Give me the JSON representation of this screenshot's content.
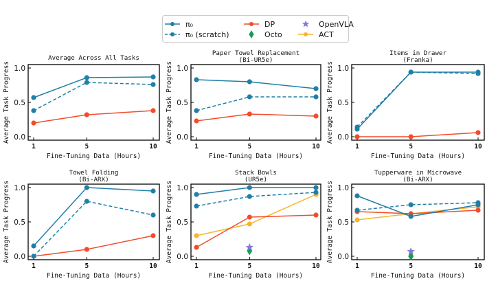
{
  "legend": {
    "entries": [
      {
        "key": "pi0",
        "label": "π₀",
        "color": "#1f7fa8",
        "style": "solid",
        "marker": "circle"
      },
      {
        "key": "pi0_scratch",
        "label": "π₀ (scratch)",
        "color": "#1f7fa8",
        "style": "dashed",
        "marker": "circle"
      },
      {
        "key": "dp",
        "label": "DP",
        "color": "#f24c2b",
        "style": "solid",
        "marker": "circle"
      },
      {
        "key": "octo",
        "label": "Octo",
        "color": "#1a9a55",
        "style": "none",
        "marker": "diamond"
      },
      {
        "key": "openvla",
        "label": "OpenVLA",
        "color": "#8479d6",
        "style": "none",
        "marker": "star"
      },
      {
        "key": "act",
        "label": "ACT",
        "color": "#f7b52b",
        "style": "solid",
        "marker": "circle"
      }
    ]
  },
  "chart_data": [
    {
      "type": "line",
      "title": "Average Across All Tasks",
      "subtitle": "",
      "xlabel": "Fine-Tuning Data (Hours)",
      "ylabel": "Average Task Progress",
      "x": [
        1,
        5,
        10
      ],
      "xticks": [
        "1",
        "5",
        "10"
      ],
      "yticks": [
        "0.0",
        "0.5",
        "1.0"
      ],
      "ylim": [
        0,
        1
      ],
      "series": [
        {
          "key": "pi0",
          "values": [
            0.57,
            0.86,
            0.87
          ]
        },
        {
          "key": "pi0_scratch",
          "values": [
            0.38,
            0.79,
            0.76
          ]
        },
        {
          "key": "dp",
          "values": [
            0.2,
            0.32,
            0.38
          ]
        }
      ]
    },
    {
      "type": "line",
      "title": "Paper Towel Replacement",
      "subtitle": "(Bi-UR5e)",
      "xlabel": "Fine-Tuning Data (Hours)",
      "ylabel": "Average Task Progress",
      "x": [
        1,
        5,
        10
      ],
      "xticks": [
        "1",
        "5",
        "10"
      ],
      "yticks": [
        "0.0",
        "0.5",
        "1.0"
      ],
      "ylim": [
        0,
        1
      ],
      "series": [
        {
          "key": "pi0",
          "values": [
            0.83,
            0.8,
            0.7
          ]
        },
        {
          "key": "pi0_scratch",
          "values": [
            0.38,
            0.58,
            0.58
          ]
        },
        {
          "key": "dp",
          "values": [
            0.23,
            0.33,
            0.3
          ]
        }
      ]
    },
    {
      "type": "line",
      "title": "Items in Drawer",
      "subtitle": "(Franka)",
      "xlabel": "Fine-Tuning Data (Hours)",
      "ylabel": "Average Task Progress",
      "x": [
        1,
        5,
        10
      ],
      "xticks": [
        "1",
        "5",
        "10"
      ],
      "yticks": [
        "0.0",
        "0.5",
        "1.0"
      ],
      "ylim": [
        0,
        1
      ],
      "series": [
        {
          "key": "pi0",
          "values": [
            0.11,
            0.94,
            0.94
          ]
        },
        {
          "key": "pi0_scratch",
          "values": [
            0.14,
            0.94,
            0.92
          ]
        },
        {
          "key": "dp",
          "values": [
            0.0,
            0.0,
            0.06
          ]
        }
      ]
    },
    {
      "type": "line",
      "title": "Towel Folding",
      "subtitle": "(Bi-ARX)",
      "xlabel": "Fine-Tuning Data (Hours)",
      "ylabel": "Average Task Progress",
      "x": [
        1,
        5,
        10
      ],
      "xticks": [
        "1",
        "5",
        "10"
      ],
      "yticks": [
        "0.0",
        "0.5",
        "1.0"
      ],
      "ylim": [
        0,
        1
      ],
      "series": [
        {
          "key": "pi0",
          "values": [
            0.15,
            1.0,
            0.95
          ]
        },
        {
          "key": "pi0_scratch",
          "values": [
            0.0,
            0.8,
            0.6
          ]
        },
        {
          "key": "dp",
          "values": [
            0.0,
            0.1,
            0.3
          ]
        }
      ]
    },
    {
      "type": "line",
      "title": "Stack Bowls",
      "subtitle": "(UR5e)",
      "xlabel": "Fine-Tuning Data (Hours)",
      "ylabel": "Average Task Progress",
      "x": [
        1,
        5,
        10
      ],
      "xticks": [
        "1",
        "5",
        "10"
      ],
      "yticks": [
        "0.0",
        "0.5",
        "1.0"
      ],
      "ylim": [
        0,
        1
      ],
      "series": [
        {
          "key": "pi0",
          "values": [
            0.9,
            1.0,
            1.0
          ]
        },
        {
          "key": "pi0_scratch",
          "values": [
            0.73,
            0.87,
            0.93
          ]
        },
        {
          "key": "dp",
          "values": [
            0.13,
            0.57,
            0.6
          ]
        },
        {
          "key": "act",
          "values": [
            0.3,
            0.47,
            0.9
          ]
        }
      ],
      "points": [
        {
          "key": "openvla",
          "x": 5,
          "y": 0.13
        },
        {
          "key": "octo",
          "x": 5,
          "y": 0.08
        }
      ]
    },
    {
      "type": "line",
      "title": "Tupperware in Microwave",
      "subtitle": "(Bi-ARX)",
      "xlabel": "Fine-Tuning Data (Hours)",
      "ylabel": "Average Task Progress",
      "x": [
        1,
        5,
        10
      ],
      "xticks": [
        "1",
        "5",
        "10"
      ],
      "yticks": [
        "0.0",
        "0.5",
        "1.0"
      ],
      "ylim": [
        0,
        1
      ],
      "series": [
        {
          "key": "pi0",
          "values": [
            0.88,
            0.58,
            0.75
          ]
        },
        {
          "key": "pi0_scratch",
          "values": [
            0.67,
            0.75,
            0.78
          ]
        },
        {
          "key": "dp",
          "values": [
            0.65,
            0.62,
            0.67
          ]
        },
        {
          "key": "act",
          "values": [
            0.53,
            0.62,
            0.72
          ]
        }
      ],
      "points": [
        {
          "key": "openvla",
          "x": 5,
          "y": 0.07
        },
        {
          "key": "octo",
          "x": 5,
          "y": 0.0
        }
      ]
    }
  ]
}
